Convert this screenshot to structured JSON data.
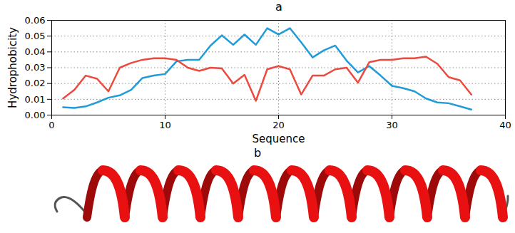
{
  "chart_data": {
    "type": "line",
    "title": "a",
    "x_label": "Sequence",
    "y_label": "Hydrophobicity",
    "x": [
      1,
      2,
      3,
      4,
      5,
      6,
      7,
      8,
      9,
      10,
      11,
      12,
      13,
      14,
      15,
      16,
      17,
      18,
      19,
      20,
      21,
      22,
      23,
      24,
      25,
      26,
      27,
      28,
      29,
      30,
      31,
      32,
      33,
      34,
      35,
      36,
      37
    ],
    "series": [
      {
        "color": "#1f9bd7",
        "values": [
          0.005,
          0.0045,
          0.0055,
          0.008,
          0.011,
          0.0125,
          0.016,
          0.0235,
          0.025,
          0.026,
          0.034,
          0.035,
          0.035,
          0.044,
          0.0505,
          0.0445,
          0.051,
          0.0445,
          0.055,
          0.051,
          0.055,
          0.046,
          0.0365,
          0.041,
          0.044,
          0.0345,
          0.027,
          0.031,
          0.025,
          0.0185,
          0.017,
          0.015,
          0.0105,
          0.008,
          0.0075,
          0.0055,
          0.0035
        ]
      },
      {
        "color": "#ec4a3f",
        "values": [
          0.0105,
          0.016,
          0.025,
          0.023,
          0.015,
          0.03,
          0.033,
          0.035,
          0.036,
          0.036,
          0.035,
          0.03,
          0.028,
          0.03,
          0.0295,
          0.02,
          0.0255,
          0.009,
          0.029,
          0.031,
          0.029,
          0.013,
          0.025,
          0.025,
          0.029,
          0.03,
          0.0205,
          0.0335,
          0.035,
          0.035,
          0.036,
          0.036,
          0.037,
          0.0325,
          0.024,
          0.022,
          0.013
        ]
      }
    ],
    "xlim": [
      0,
      40
    ],
    "xticks": [
      0,
      10,
      20,
      30,
      40
    ],
    "ylim": [
      0,
      0.06
    ],
    "yticks": [
      {
        "value": 0,
        "label": "0.00"
      },
      {
        "value": 0.01,
        "label": "0.01"
      },
      {
        "value": 0.02,
        "label": "0.02"
      },
      {
        "value": 0.03,
        "label": "0.03"
      },
      {
        "value": 0.04,
        "label": "0.04"
      },
      {
        "value": 0.05,
        "label": "0.05"
      },
      {
        "value": 0.06,
        "label": "0.06"
      }
    ],
    "grid": true
  },
  "panel_b": {
    "label": "b"
  }
}
